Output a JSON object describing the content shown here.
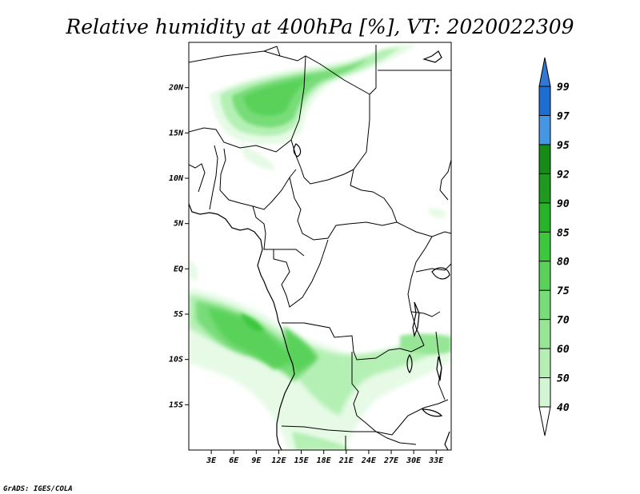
{
  "title": "Relative humidity at 400hPa [%], VT: 2020022309",
  "credit": "GrADS: IGES/COLA",
  "map": {
    "lon_range": [
      0,
      35
    ],
    "lat_range": [
      -20,
      25
    ],
    "lat_ticks": [
      {
        "value": 20,
        "label": "20N"
      },
      {
        "value": 15,
        "label": "15N"
      },
      {
        "value": 10,
        "label": "10N"
      },
      {
        "value": 5,
        "label": "5N"
      },
      {
        "value": 0,
        "label": "EQ"
      },
      {
        "value": -5,
        "label": "5S"
      },
      {
        "value": -10,
        "label": "10S"
      },
      {
        "value": -15,
        "label": "15S"
      }
    ],
    "lon_ticks": [
      {
        "value": 3,
        "label": "3E"
      },
      {
        "value": 6,
        "label": "6E"
      },
      {
        "value": 9,
        "label": "9E"
      },
      {
        "value": 12,
        "label": "12E"
      },
      {
        "value": 15,
        "label": "15E"
      },
      {
        "value": 18,
        "label": "18E"
      },
      {
        "value": 21,
        "label": "21E"
      },
      {
        "value": 24,
        "label": "24E"
      },
      {
        "value": 27,
        "label": "27E"
      },
      {
        "value": 30,
        "label": "30E"
      },
      {
        "value": 33,
        "label": "33E"
      }
    ]
  },
  "colorbar": {
    "levels": [
      {
        "label": "40",
        "color": "#e6fae6"
      },
      {
        "label": "50",
        "color": "#d2f5d2"
      },
      {
        "label": "60",
        "color": "#b4f0b4"
      },
      {
        "label": "70",
        "color": "#96e696"
      },
      {
        "label": "75",
        "color": "#78dc78"
      },
      {
        "label": "80",
        "color": "#5ad25a"
      },
      {
        "label": "85",
        "color": "#3cc83c"
      },
      {
        "label": "90",
        "color": "#28b428"
      },
      {
        "label": "92",
        "color": "#1e9b1e"
      },
      {
        "label": "95",
        "color": "#168c16"
      },
      {
        "label": "97",
        "color": "#4696e6"
      },
      {
        "label": "99",
        "color": "#1e6ed2"
      }
    ],
    "top_color": "#3278d2",
    "bottom_color": "#ffffff"
  }
}
